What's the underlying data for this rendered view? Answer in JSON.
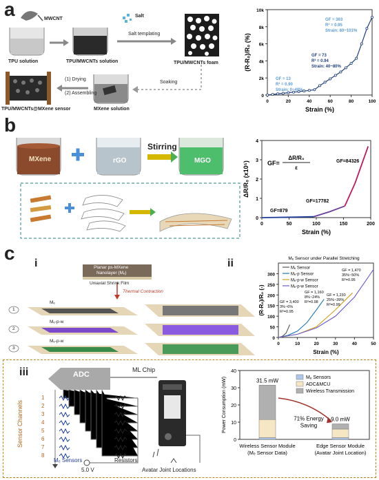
{
  "panel_a": {
    "letter": "a",
    "labels": {
      "mwcnt": "MWCNT",
      "salt": "Salt",
      "tpu_solution": "TPU solution",
      "tpu_mwcnts_solution": "TPU/MWCNTs solution",
      "salt_templating": "Salt templating",
      "foam": "TPU/MWCNTs foam",
      "soaking": "Soaking",
      "drying": "(1) Drying",
      "assembling": "(2) Assembling",
      "sensor": "TPU/MWCNTs@MXene sensor",
      "mxene_solution": "MXene solution"
    }
  },
  "panel_b": {
    "letter": "b",
    "labels": {
      "mxene": "MXene",
      "rgo": "rGO",
      "stirring": "Stirring",
      "mgo": "MGO"
    }
  },
  "panel_c": {
    "letter": "c",
    "sub_i": "i",
    "sub_ii": "ii",
    "sub_iii": "iii",
    "labels": {
      "planar_line1": "Planar ps-MXene",
      "planar_line2": "Nanolayer (Mₑ)",
      "shrink_film": "Uniaxial Shrink Film",
      "thermal": "Thermal Contraction",
      "row1": "1",
      "row2": "2",
      "row3": "3",
      "row1_label": "Mₑ",
      "row2_label": "Mₑ-p-w",
      "row3_label": "Mₑ-p-w"
    }
  },
  "panel_iii": {
    "labels": {
      "adc": "ADC",
      "ml_chip": "ML Chip",
      "sensor_channels": "Sensor Channels",
      "channels": [
        "1",
        "2",
        "3",
        "4",
        "5",
        "6",
        "7",
        "8"
      ],
      "me_sensors": "Mₑ Sensors",
      "resistors": "Resistors",
      "voltage": "5.0 V",
      "avatar": "Avatar Joint Locations"
    }
  },
  "chart_data": [
    {
      "type": "line",
      "xlabel": "Strain (%)",
      "ylabel": "(R-R₀)/R₀ (%)",
      "xlim": [
        0,
        100
      ],
      "ylim": [
        0,
        10000
      ],
      "xticks": [
        "0",
        "20",
        "40",
        "60",
        "80",
        "100"
      ],
      "yticks": [
        "0",
        "2k",
        "4k",
        "6k",
        "8k",
        "10k"
      ],
      "series": [
        {
          "x": [
            0,
            5,
            10,
            15,
            20,
            25,
            30,
            35,
            40,
            45,
            50,
            55,
            60,
            65,
            70,
            75,
            80,
            85,
            90,
            95,
            100
          ],
          "y": [
            0,
            70,
            140,
            200,
            270,
            340,
            400,
            470,
            540,
            620,
            1100,
            1500,
            1900,
            2300,
            2700,
            3200,
            3700,
            4300,
            6000,
            7800,
            9100
          ]
        }
      ],
      "annotations": [
        {
          "lines": [
            "GF = 13",
            "R² = 0.90",
            "Strain: 0~40%"
          ],
          "color": "#5b9bd5"
        },
        {
          "lines": [
            "GF = 73",
            "R² = 0.94",
            "Strain: 40~80%"
          ],
          "color": "#1f3e7a"
        },
        {
          "lines": [
            "GF = 363",
            "R² = 0.95",
            "Strain: 80~101%"
          ],
          "color": "#5b9bd5"
        }
      ]
    },
    {
      "type": "line",
      "xlabel": "Strain (%)",
      "ylabel": "ΔR/R₀ (x10⁵)",
      "xlim": [
        0,
        210
      ],
      "ylim": [
        0,
        4
      ],
      "xticks": [
        "0",
        "50",
        "100",
        "150",
        "200"
      ],
      "yticks": [
        "0",
        "1",
        "2",
        "3",
        "4"
      ],
      "formula": {
        "lhs": "GF=",
        "num": "ΔR/R₀",
        "den": "ε"
      },
      "series": [
        {
          "name": "",
          "x": [
            0,
            50,
            100
          ],
          "y": [
            0,
            0.02,
            0.05
          ],
          "color": "#1f3e9a"
        },
        {
          "name": "",
          "x": [
            100,
            130,
            160
          ],
          "y": [
            0.05,
            0.3,
            0.6
          ],
          "color": "#6a3d9a"
        },
        {
          "name": "",
          "x": [
            160,
            180,
            205
          ],
          "y": [
            0.6,
            1.8,
            3.7
          ],
          "color": "#c2185b"
        }
      ],
      "annotations": [
        "GF=879",
        "GF=17782",
        "GF=84326"
      ]
    },
    {
      "type": "line",
      "title": "Mₑ Sensor under Parallel Stretching",
      "xlabel": "Strain (%)",
      "ylabel": "(R-R₀)/R₀ (-)",
      "xlim": [
        0,
        50
      ],
      "ylim": [
        0,
        350
      ],
      "xticks": [
        "0",
        "10",
        "20",
        "30",
        "40",
        "50"
      ],
      "yticks": [
        "0",
        "50",
        "100",
        "150",
        "200",
        "250",
        "300"
      ],
      "series": [
        {
          "name": "Mₑ Sensor",
          "color": "#555555",
          "x": [
            0,
            2,
            4,
            6
          ],
          "y": [
            0,
            5,
            20,
            60
          ]
        },
        {
          "name": "Mₑ-p Sensor",
          "color": "#1f77b4",
          "x": [
            0,
            5,
            10,
            15,
            20,
            24
          ],
          "y": [
            0,
            10,
            30,
            70,
            130,
            180
          ]
        },
        {
          "name": "Mₑ-p-w Sensor",
          "color": "#d4a017",
          "x": [
            0,
            10,
            20,
            30,
            39
          ],
          "y": [
            0,
            15,
            50,
            130,
            210
          ]
        },
        {
          "name": "Mₑ-p-w Sensor",
          "color": "#6a5acd",
          "x": [
            0,
            10,
            20,
            30,
            40,
            50
          ],
          "y": [
            0,
            15,
            45,
            100,
            190,
            320
          ]
        }
      ],
      "annotations": [
        {
          "lines": [
            "GF = 3,400",
            "3%~6%",
            "R²=0.95"
          ]
        },
        {
          "lines": [
            "GF = 1,160",
            "8%~24%",
            "R²=0.98"
          ]
        },
        {
          "lines": [
            "GF = 1,230",
            "25%~39%",
            "R²=0.99"
          ]
        },
        {
          "lines": [
            "GF = 1,470",
            "35%~50%",
            "R²=0.95"
          ]
        }
      ]
    },
    {
      "type": "bar",
      "ylabel": "Power Consumption (mW)",
      "ylim": [
        0,
        40
      ],
      "yticks": [
        "0",
        "10",
        "20",
        "30",
        "40"
      ],
      "categories": [
        "Wireless Sensor Module (Mₑ Sensor Data)",
        "Edge Sensor Module (Avatar Joint Location)"
      ],
      "category_lines": [
        [
          "Wireless Sensor Module",
          "(Mₑ Sensor Data)"
        ],
        [
          "Edge Sensor Module",
          "(Avatar Joint Location)"
        ]
      ],
      "totals": [
        "31.5 mW",
        "9.0 mW"
      ],
      "series": [
        {
          "name": "Mₑ Sensors",
          "color": "#aec7e8",
          "values": [
            1.0,
            1.0
          ]
        },
        {
          "name": "ADC&MCU",
          "color": "#f5e6c4",
          "values": [
            10.5,
            5.0
          ]
        },
        {
          "name": "Wireless Transmission",
          "color": "#b0b0b0",
          "values": [
            20.0,
            3.0
          ]
        }
      ],
      "annotation": [
        "71% Energy",
        "Saving"
      ]
    }
  ]
}
